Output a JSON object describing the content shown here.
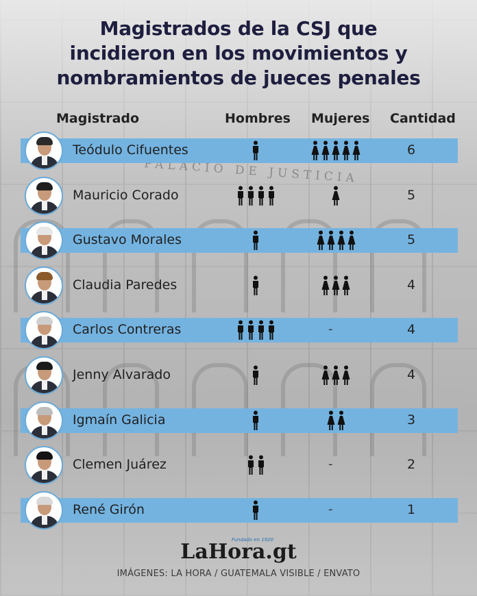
{
  "title_line1": "Magistrados de la CSJ que",
  "title_line2": "incidieron en los movimientos y",
  "title_line3": "nombramientos de jueces penales",
  "watermark_text": "PALACIO DE JUSTICIA",
  "colors": {
    "band": "#74b3e0",
    "title": "#1e1e3f",
    "icon": "#111111"
  },
  "chart_data": {
    "type": "table",
    "columns": [
      "Magistrado",
      "Hombres",
      "Mujeres",
      "Cantidad"
    ],
    "rows": [
      {
        "name": "Teódulo Cifuentes",
        "hombres": 1,
        "mujeres": 5,
        "cantidad": 6,
        "hombres_text": "",
        "mujeres_text": "",
        "highlight": true,
        "hair": "#2a2a2a"
      },
      {
        "name": "Mauricio Corado",
        "hombres": 4,
        "mujeres": 1,
        "cantidad": 5,
        "hombres_text": "",
        "mujeres_text": "",
        "highlight": false,
        "hair": "#1f1f1f"
      },
      {
        "name": "Gustavo Morales",
        "hombres": 1,
        "mujeres": 4,
        "cantidad": 5,
        "hombres_text": "",
        "mujeres_text": "",
        "highlight": true,
        "hair": "#e6e6e6"
      },
      {
        "name": "Claudia Paredes",
        "hombres": 1,
        "mujeres": 3,
        "cantidad": 4,
        "hombres_text": "",
        "mujeres_text": "",
        "highlight": false,
        "hair": "#8a5a2b"
      },
      {
        "name": "Carlos Contreras",
        "hombres": 4,
        "mujeres": 0,
        "cantidad": 4,
        "hombres_text": "",
        "mujeres_text": "-",
        "highlight": true,
        "hair": "#cfcfcf"
      },
      {
        "name": "Jenny Alvarado",
        "hombres": 1,
        "mujeres": 3,
        "cantidad": 4,
        "hombres_text": "",
        "mujeres_text": "",
        "highlight": false,
        "hair": "#1b1b1b"
      },
      {
        "name": "Igmaín Galicia",
        "hombres": 1,
        "mujeres": 2,
        "cantidad": 3,
        "hombres_text": "",
        "mujeres_text": "",
        "highlight": true,
        "hair": "#bdbdbd"
      },
      {
        "name": "Clemen Juárez",
        "hombres": 2,
        "mujeres": 0,
        "cantidad": 2,
        "hombres_text": "",
        "mujeres_text": "-",
        "highlight": false,
        "hair": "#141414"
      },
      {
        "name": "René Girón",
        "hombres": 1,
        "mujeres": 0,
        "cantidad": 1,
        "hombres_text": "",
        "mujeres_text": "-",
        "highlight": true,
        "hair": "#d8d8d8"
      }
    ]
  },
  "logo": {
    "text_a": "LaH",
    "text_o": "o",
    "text_b": "ra.gt",
    "tagline": "Fundado en 1920"
  },
  "credits": "IMÁGENES: LA HORA / GUATEMALA VISIBLE / ENVATO"
}
